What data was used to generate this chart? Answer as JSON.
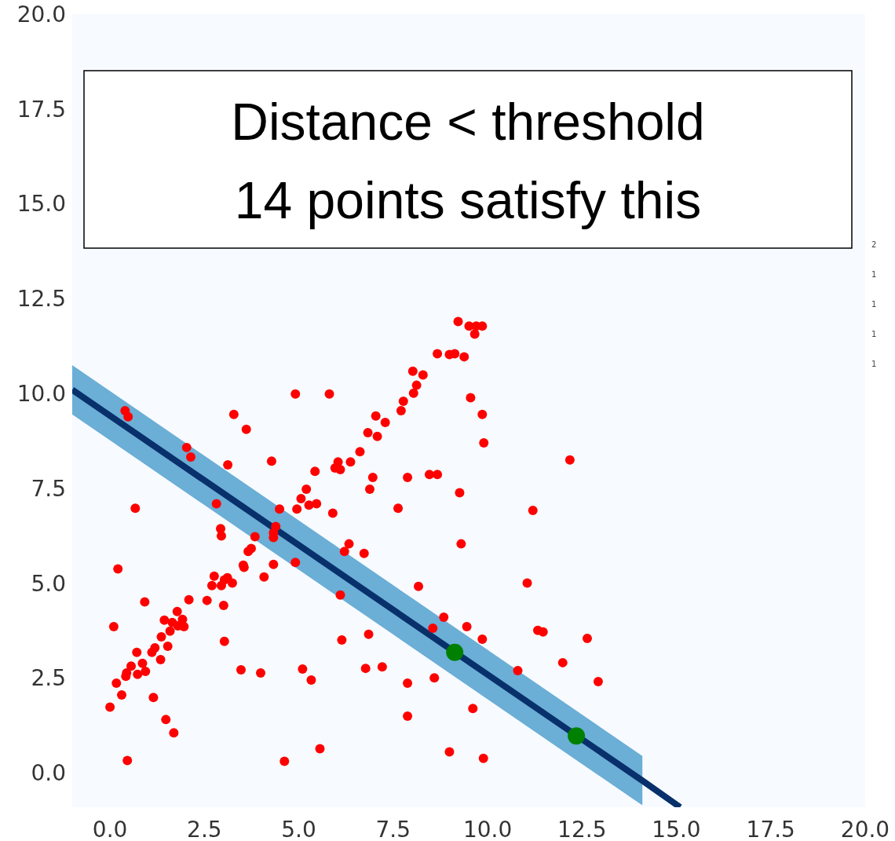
{
  "chart_data": {
    "type": "scatter",
    "xlim": [
      -1,
      20
    ],
    "ylim": [
      -0.9,
      20
    ],
    "xticks": [
      {
        "value": 0,
        "label": "0.0"
      },
      {
        "value": 2.5,
        "label": "2.5"
      },
      {
        "value": 5,
        "label": "5.0"
      },
      {
        "value": 7.5,
        "label": "7.5"
      },
      {
        "value": 10,
        "label": "10.0"
      },
      {
        "value": 12.5,
        "label": "12.5"
      },
      {
        "value": 15,
        "label": "15.0"
      },
      {
        "value": 17.5,
        "label": "17.5"
      },
      {
        "value": 20,
        "label": "20.0"
      }
    ],
    "yticks": [
      {
        "value": 0,
        "label": "0.0"
      },
      {
        "value": 2.5,
        "label": "2.5"
      },
      {
        "value": 5,
        "label": "5.0"
      },
      {
        "value": 7.5,
        "label": "7.5"
      },
      {
        "value": 10,
        "label": "10.0"
      },
      {
        "value": 12.5,
        "label": "12.5"
      },
      {
        "value": 15,
        "label": "15.0"
      },
      {
        "value": 17.5,
        "label": "17.5"
      },
      {
        "value": 20,
        "label": "20.0"
      }
    ],
    "grid": false,
    "marker": "circle",
    "annotations": [
      "Distance < threshold",
      "14 points satisfy this",
      "2",
      "1",
      "1",
      "1",
      "1"
    ],
    "series": [
      {
        "type": "line",
        "color": "#08306b",
        "line_style": "solid",
        "marker": "none",
        "x": [
          -1,
          14.1,
          15.1
        ],
        "values": [
          10.1,
          -0.2,
          -0.9
        ],
        "lower": [
          9.45,
          -0.85,
          null
        ],
        "upper": [
          10.75,
          0.45,
          null
        ]
      },
      {
        "color": "#ff0000",
        "x": [
          9.22,
          9.51,
          9.7,
          9.86,
          9.66,
          8.99,
          9.13,
          9.38,
          8.67,
          9.55,
          9.86,
          9.9,
          8.02,
          8.29,
          8.12,
          8.04,
          7.77,
          7.71,
          7.04,
          7.29,
          7.08,
          6.83,
          6.62,
          6.37,
          6.04,
          5.96,
          6.1,
          5.43,
          5.2,
          5.06,
          5.47,
          5.27,
          4.95,
          4.49,
          6.96,
          6.88,
          5.9,
          7.63,
          8.17,
          7.88,
          8.46,
          8.67,
          9.26,
          9.3,
          12.18,
          11.2,
          11.05,
          11.33,
          11.47,
          12.64,
          11.99,
          10.8,
          12.93,
          9.45,
          8.84,
          8.55,
          9.86,
          9.61,
          8.59,
          7.88,
          7.88,
          7.21,
          6.77,
          6.85,
          6.73,
          6.33,
          6.21,
          6.1,
          6.14,
          5.1,
          5.33,
          5.56,
          4.62,
          8.99,
          9.89,
          4.91,
          5.81,
          3.28,
          3.61,
          4.28,
          3.12,
          2.03,
          2.14,
          0.4,
          0.48,
          0.67,
          0.21,
          0.1,
          0.92,
          0,
          0.17,
          0.31,
          0.46,
          1.15,
          1.48,
          1.69,
          0.42,
          0.44,
          0.56,
          0.71,
          0.73,
          0.86,
          0.94,
          1.11,
          1.19,
          1.34,
          1.36,
          1.44,
          1.53,
          1.59,
          1.65,
          1.78,
          1.8,
          1.92,
          1.96,
          2.09,
          2.57,
          2.7,
          2.76,
          2.95,
          3.03,
          3.11,
          3.24,
          3.01,
          3.03,
          2.93,
          2.95,
          2.82,
          3.53,
          3.55,
          3.66,
          3.74,
          3.84,
          4.08,
          4.33,
          4.33,
          4.33,
          4.39,
          4.91,
          3.47,
          3.99
        ],
        "values": [
          11.9,
          11.78,
          11.78,
          11.78,
          11.57,
          11.03,
          11.05,
          10.97,
          11.05,
          9.89,
          9.45,
          8.7,
          10.59,
          10.49,
          10.22,
          10.01,
          9.8,
          9.55,
          9.41,
          9.24,
          8.87,
          8.97,
          8.47,
          8.2,
          8.2,
          8.04,
          8,
          7.95,
          7.48,
          7.23,
          7.1,
          7.06,
          6.96,
          6.96,
          7.79,
          7.48,
          6.85,
          6.98,
          4.92,
          7.79,
          7.87,
          7.87,
          7.39,
          6.04,
          8.25,
          6.92,
          5.01,
          3.76,
          3.72,
          3.55,
          2.91,
          2.7,
          2.41,
          3.86,
          4.11,
          3.82,
          3.53,
          1.7,
          2.51,
          1.5,
          2.37,
          2.8,
          2.76,
          3.66,
          5.79,
          6.04,
          5.84,
          4.69,
          3.51,
          2.74,
          2.45,
          0.64,
          0.31,
          0.56,
          0.39,
          9.99,
          9.99,
          9.45,
          9.06,
          8.22,
          8.12,
          8.58,
          8.33,
          9.55,
          9.39,
          6.98,
          5.38,
          3.86,
          4.51,
          1.74,
          2.37,
          2.06,
          0.33,
          1.99,
          1.41,
          1.06,
          2.55,
          2.64,
          2.82,
          3.18,
          2.6,
          2.89,
          2.68,
          3.18,
          3.3,
          2.99,
          3.59,
          4.03,
          3.34,
          3.74,
          3.97,
          4.26,
          3.88,
          4.05,
          3.86,
          4.57,
          4.55,
          4.94,
          5.19,
          4.94,
          5.09,
          5.15,
          5.01,
          4.42,
          3.47,
          6.44,
          6.25,
          7.1,
          5.48,
          5.42,
          5.84,
          5.92,
          6.23,
          5.17,
          5.5,
          6.33,
          6.21,
          6.5,
          5.55,
          2.72,
          2.64
        ]
      },
      {
        "color": "#008000",
        "x": [
          9.13,
          12.35
        ],
        "values": [
          3.18,
          0.98
        ]
      }
    ]
  }
}
